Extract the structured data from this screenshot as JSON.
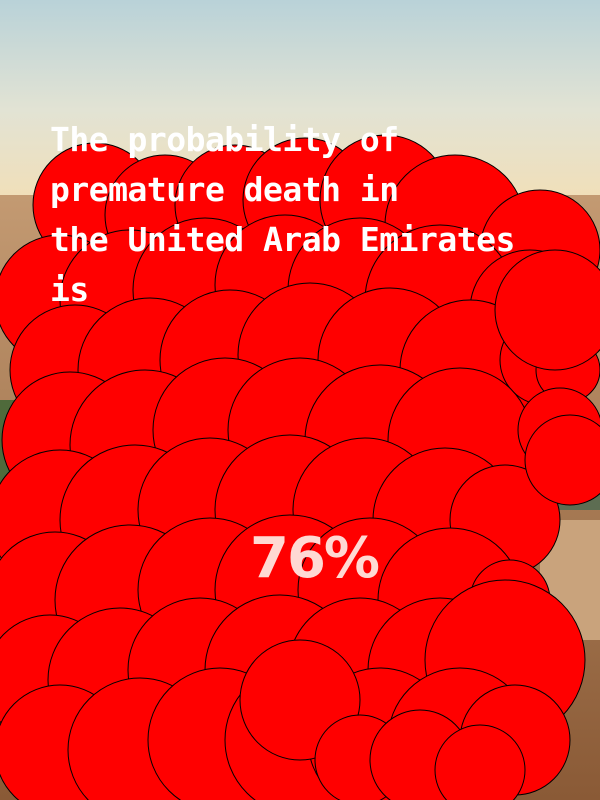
{
  "headline": {
    "lines": [
      "The probability of",
      "premature death in",
      "the United Arab Emirates",
      "is"
    ]
  },
  "statistic": {
    "value_label": "76%",
    "probability": 0.76
  },
  "colors": {
    "bubble_fill": "#ff0000",
    "bubble_stroke": "#000000",
    "headline_text": "#ffffff",
    "stat_text": "#ffd9d3",
    "sky_top": "#c9dde0",
    "sky_horizon": "#efe3c4",
    "land": "#b9855a"
  },
  "background": {
    "subject": "desert-city-landscape-photo"
  }
}
